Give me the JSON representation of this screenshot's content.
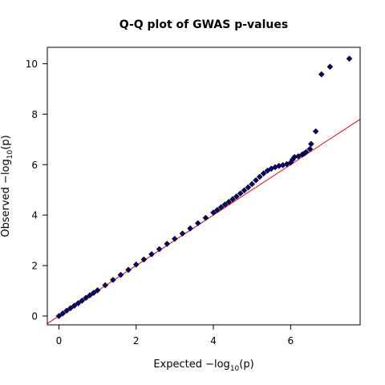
{
  "chart_data": {
    "type": "scatter",
    "title": "Q-Q plot of GWAS p-values",
    "xlabel": {
      "prefix": "Expected  −log",
      "sub": "10",
      "suffix": "(p)"
    },
    "ylabel": {
      "prefix": "Observed  −log",
      "sub": "10",
      "suffix": "(p)"
    },
    "xlim": [
      -0.3,
      7.8
    ],
    "ylim": [
      -0.35,
      10.65
    ],
    "xticks": [
      0,
      2,
      4,
      6
    ],
    "yticks": [
      0,
      2,
      4,
      6,
      8,
      10
    ],
    "grid": false,
    "reference_line": {
      "slope": 1,
      "intercept": 0,
      "color": "#ff0000"
    },
    "marker": {
      "shape": "diamond",
      "fill": "#00008b",
      "stroke": "#000000"
    },
    "series": [
      {
        "x": [
          0.0,
          0.1,
          0.2,
          0.3,
          0.4,
          0.5,
          0.6,
          0.7,
          0.8,
          0.9,
          1.0,
          1.2,
          1.4,
          1.6,
          1.8,
          2.0,
          2.2,
          2.4,
          2.6,
          2.8,
          3.0,
          3.2,
          3.4,
          3.6,
          3.8,
          4.0,
          4.1,
          4.2,
          4.3,
          4.4,
          4.5,
          4.6,
          4.7,
          4.8,
          4.9,
          5.0,
          5.1,
          5.2,
          5.3,
          5.4,
          5.5,
          5.6,
          5.7,
          5.8,
          5.9,
          6.0,
          6.05,
          6.1,
          6.2,
          6.3,
          6.35,
          6.4,
          6.5,
          6.53,
          6.65,
          6.8,
          7.02,
          7.52
        ],
        "y": [
          0.0,
          0.1,
          0.21,
          0.31,
          0.41,
          0.51,
          0.61,
          0.72,
          0.82,
          0.92,
          1.02,
          1.22,
          1.43,
          1.63,
          1.83,
          2.04,
          2.24,
          2.45,
          2.65,
          2.86,
          3.06,
          3.27,
          3.47,
          3.68,
          3.89,
          4.1,
          4.2,
          4.31,
          4.42,
          4.52,
          4.63,
          4.74,
          4.86,
          4.98,
          5.1,
          5.23,
          5.38,
          5.52,
          5.65,
          5.76,
          5.84,
          5.9,
          5.95,
          5.98,
          6.02,
          6.08,
          6.2,
          6.3,
          6.33,
          6.4,
          6.44,
          6.5,
          6.62,
          6.82,
          7.32,
          9.58,
          9.88,
          10.2
        ]
      }
    ]
  }
}
